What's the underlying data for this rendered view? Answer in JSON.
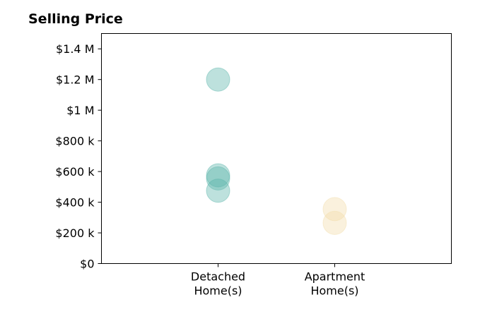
{
  "chart_data": {
    "type": "scatter",
    "title": "Selling Price",
    "xlabel": "",
    "ylabel": "",
    "categories": [
      "Detached\nHome(s)",
      "Apartment\nHome(s)"
    ],
    "xlim": [
      -1,
      2
    ],
    "ylim": [
      0,
      1500000
    ],
    "yticks": [
      {
        "value": 0,
        "label": "$0"
      },
      {
        "value": 200000,
        "label": "$200 k"
      },
      {
        "value": 400000,
        "label": "$400 k"
      },
      {
        "value": 600000,
        "label": "$600 k"
      },
      {
        "value": 800000,
        "label": "$800 k"
      },
      {
        "value": 1000000,
        "label": "$1 M"
      },
      {
        "value": 1200000,
        "label": "$1.2 M"
      },
      {
        "value": 1400000,
        "label": "$1.4 M"
      }
    ],
    "series": [
      {
        "category": "Detached\nHome(s)",
        "color": "#5bb5ab",
        "values": [
          1200000,
          575000,
          555000,
          475000
        ]
      },
      {
        "category": "Apartment\nHome(s)",
        "color": "#f2ddab",
        "values": [
          355000,
          265000
        ]
      }
    ],
    "grid": false,
    "legend": "none"
  }
}
